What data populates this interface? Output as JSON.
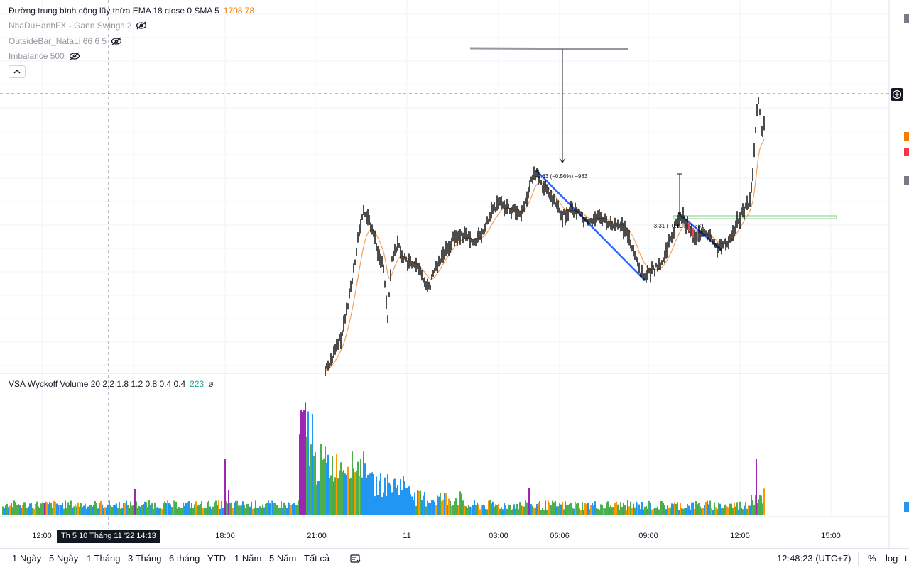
{
  "legend": {
    "ema": {
      "label": "Đường trung bình cộng lũy thừa EMA 18 close 0 SMA 5",
      "value": "1708.78"
    },
    "gann": {
      "label": "NhaDuHanhFX - Gann Swings 2"
    },
    "outside": {
      "label": "OutsideBar_NataLi 66 6 5"
    },
    "imbalance": {
      "label": "Imbalance 500"
    }
  },
  "annotations": {
    "measure1": "-9.83 (−0.56%) −983",
    "measure2": "−3.31 (−0.19%) −331"
  },
  "vsa": {
    "label": "VSA Wyckoff Volume 20 2.2 1.8 1.2 0.8 0.4 0.4",
    "value": "223",
    "extra": "ø"
  },
  "time_axis": {
    "ticks": [
      "12:00",
      "18:00",
      "21:00",
      "11",
      "03:00",
      "06:06",
      "09:00",
      "12:00",
      "15:00"
    ],
    "crosshair_label": "Th 5 10 Tháng 11 '22   14:13"
  },
  "bottom": {
    "ranges": [
      "1 Ngày",
      "5 Ngày",
      "1 Tháng",
      "3 Tháng",
      "6 tháng",
      "YTD",
      "1 Năm",
      "5 Năm",
      "Tất cả"
    ],
    "clock": "12:48:23 (UTC+7)",
    "percent": "%",
    "log": "log",
    "auto": "t"
  },
  "colors": {
    "price": "#000000",
    "ema": "#f5a05a",
    "swing": "#2962ff",
    "vol_green": "#4caf50",
    "vol_blue": "#2196f3",
    "vol_orange": "#ff9800",
    "vol_purple": "#9c27b0",
    "marker_orange": "#f57c00",
    "marker_red": "#f23645",
    "marker_grey": "#787b86"
  },
  "icons": {
    "eye": "eye-hidden-icon",
    "collapse": "chevron-up-icon",
    "add": "plus-circle-icon",
    "compare": "compare-icon"
  }
}
